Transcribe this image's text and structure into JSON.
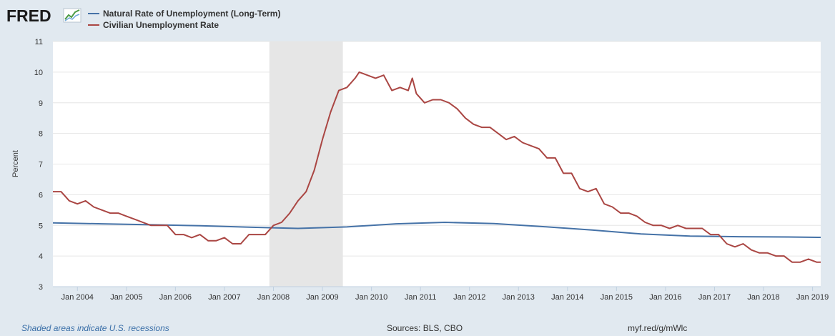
{
  "logo": {
    "text": "FRED"
  },
  "footer": {
    "note": "Shaded areas indicate U.S. recessions",
    "sources": "Sources: BLS, CBO",
    "url": "myf.red/g/mWlc"
  },
  "colors": {
    "natural": "#4572a7",
    "civilian": "#aa4643",
    "recession": "#e6e6e6",
    "grid": "#e6e6e6",
    "background": "#e1e9f0",
    "plot": "#ffffff"
  },
  "chart_data": {
    "type": "line",
    "title": "",
    "xlabel": "",
    "ylabel": "Percent",
    "ylim": [
      3,
      11
    ],
    "yticks": [
      3,
      4,
      5,
      6,
      7,
      8,
      9,
      10,
      11
    ],
    "xlim": [
      "2003-07",
      "2019-03"
    ],
    "xticks": [
      "Jan 2004",
      "Jan 2005",
      "Jan 2006",
      "Jan 2007",
      "Jan 2008",
      "Jan 2009",
      "Jan 2010",
      "Jan 2011",
      "Jan 2012",
      "Jan 2013",
      "Jan 2014",
      "Jan 2015",
      "Jan 2016",
      "Jan 2017",
      "Jan 2018",
      "Jan 2019"
    ],
    "legend_position": "top-left",
    "grid": true,
    "recessions": [
      {
        "start": "2007-12",
        "end": "2009-06"
      }
    ],
    "series": [
      {
        "name": "Natural Rate of Unemployment (Long-Term)",
        "color": "#4572a7",
        "x": [
          "2003-07",
          "2004-07",
          "2005-07",
          "2006-07",
          "2007-07",
          "2008-07",
          "2009-07",
          "2010-07",
          "2011-07",
          "2012-07",
          "2013-07",
          "2014-07",
          "2015-07",
          "2016-07",
          "2017-07",
          "2018-07",
          "2019-03"
        ],
        "values": [
          5.08,
          5.05,
          5.02,
          4.99,
          4.94,
          4.9,
          4.95,
          5.05,
          5.1,
          5.06,
          4.96,
          4.85,
          4.72,
          4.65,
          4.63,
          4.62,
          4.61
        ]
      },
      {
        "name": "Civilian Unemployment Rate",
        "color": "#aa4643",
        "x": [
          "2003-07",
          "2003-09",
          "2003-11",
          "2004-01",
          "2004-03",
          "2004-05",
          "2004-07",
          "2004-09",
          "2004-11",
          "2005-01",
          "2005-03",
          "2005-05",
          "2005-07",
          "2005-09",
          "2005-11",
          "2006-01",
          "2006-03",
          "2006-05",
          "2006-07",
          "2006-09",
          "2006-11",
          "2007-01",
          "2007-03",
          "2007-05",
          "2007-07",
          "2007-09",
          "2007-11",
          "2008-01",
          "2008-03",
          "2008-05",
          "2008-07",
          "2008-09",
          "2008-11",
          "2009-01",
          "2009-03",
          "2009-05",
          "2009-07",
          "2009-09",
          "2009-10",
          "2009-12",
          "2010-02",
          "2010-04",
          "2010-06",
          "2010-08",
          "2010-10",
          "2010-11",
          "2010-12",
          "2011-02",
          "2011-04",
          "2011-06",
          "2011-08",
          "2011-10",
          "2011-12",
          "2012-02",
          "2012-04",
          "2012-06",
          "2012-08",
          "2012-10",
          "2012-12",
          "2013-02",
          "2013-04",
          "2013-06",
          "2013-08",
          "2013-10",
          "2013-12",
          "2014-02",
          "2014-04",
          "2014-06",
          "2014-08",
          "2014-10",
          "2014-12",
          "2015-02",
          "2015-04",
          "2015-06",
          "2015-08",
          "2015-10",
          "2015-12",
          "2016-02",
          "2016-04",
          "2016-06",
          "2016-08",
          "2016-10",
          "2016-12",
          "2017-02",
          "2017-04",
          "2017-06",
          "2017-08",
          "2017-10",
          "2017-12",
          "2018-02",
          "2018-04",
          "2018-06",
          "2018-08",
          "2018-10",
          "2018-12",
          "2019-02",
          "2019-03"
        ],
        "values": [
          6.1,
          6.1,
          5.8,
          5.7,
          5.8,
          5.6,
          5.5,
          5.4,
          5.4,
          5.3,
          5.2,
          5.1,
          5.0,
          5.0,
          5.0,
          4.7,
          4.7,
          4.6,
          4.7,
          4.5,
          4.5,
          4.6,
          4.4,
          4.4,
          4.7,
          4.7,
          4.7,
          5.0,
          5.1,
          5.4,
          5.8,
          6.1,
          6.8,
          7.8,
          8.7,
          9.4,
          9.5,
          9.8,
          10.0,
          9.9,
          9.8,
          9.9,
          9.4,
          9.5,
          9.4,
          9.8,
          9.3,
          9.0,
          9.1,
          9.1,
          9.0,
          8.8,
          8.5,
          8.3,
          8.2,
          8.2,
          8.0,
          7.8,
          7.9,
          7.7,
          7.6,
          7.5,
          7.2,
          7.2,
          6.7,
          6.7,
          6.2,
          6.1,
          6.2,
          5.7,
          5.6,
          5.4,
          5.4,
          5.3,
          5.1,
          5.0,
          5.0,
          4.9,
          5.0,
          4.9,
          4.9,
          4.9,
          4.7,
          4.7,
          4.4,
          4.3,
          4.4,
          4.2,
          4.1,
          4.1,
          4.0,
          4.0,
          3.8,
          3.8,
          3.9,
          3.8,
          3.8
        ]
      }
    ]
  }
}
